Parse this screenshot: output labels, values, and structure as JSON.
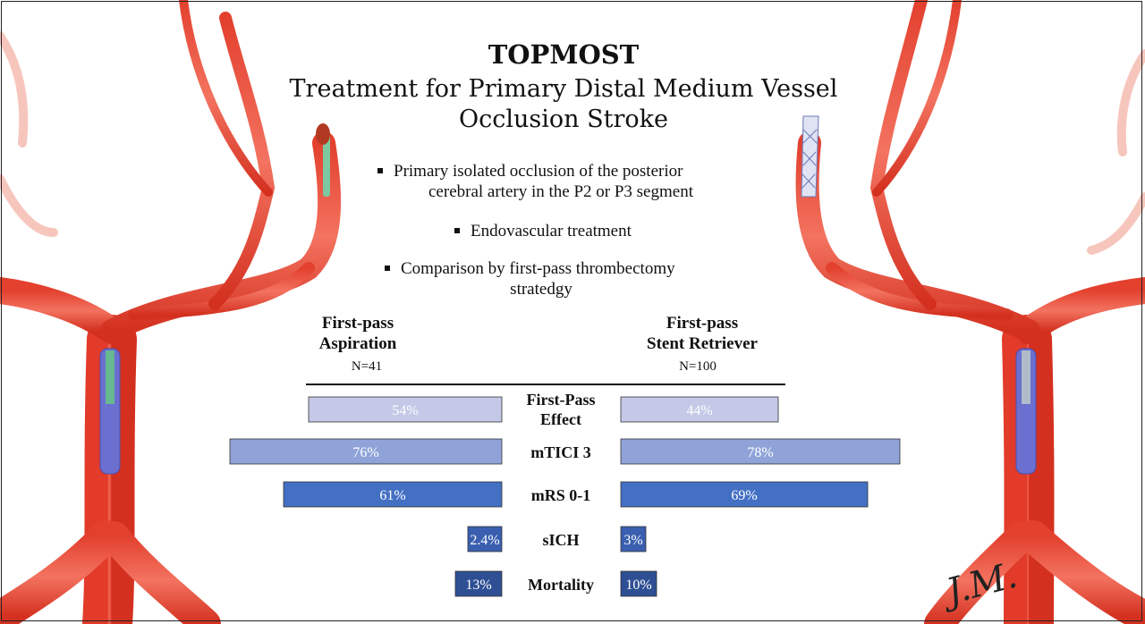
{
  "header": {
    "title": "TOPMOST",
    "subtitle": "Treatment for Primary Distal Medium Vessel Occlusion Stroke"
  },
  "bullets": [
    {
      "line1": "Primary isolated occlusion of the posterior",
      "line2": "cerebral artery in the P2 or P3 segment"
    },
    {
      "line1": "Endovascular treatment"
    },
    {
      "line1": "Comparison by first-pass thrombectomy",
      "line2": "stratedgy"
    }
  ],
  "groups": {
    "left": {
      "line1": "First-pass",
      "line2": "Aspiration",
      "n": "N=41"
    },
    "right": {
      "line1": "First-pass",
      "line2": "Stent Retriever",
      "n": "N=100"
    }
  },
  "signature": "J.M.",
  "chart_data": {
    "type": "bar",
    "orientation": "horizontal-butterfly",
    "categories": [
      "First-Pass Effect",
      "mTICI 3",
      "mRS 0-1",
      "sICH",
      "Mortality"
    ],
    "category_lines": [
      [
        "First-Pass",
        "Effect"
      ],
      [
        "mTICI 3"
      ],
      [
        "mRS 0-1"
      ],
      [
        "sICH"
      ],
      [
        "Mortality"
      ]
    ],
    "series": [
      {
        "name": "First-pass Aspiration",
        "values": [
          54,
          76,
          61,
          2.4,
          13
        ],
        "labels": [
          "54%",
          "76%",
          "61%",
          "2.4%",
          "13%"
        ]
      },
      {
        "name": "First-pass Stent Retriever",
        "values": [
          44,
          78,
          69,
          3,
          10
        ],
        "labels": [
          "44%",
          "78%",
          "69%",
          "3%",
          "10%"
        ]
      }
    ],
    "bar_colors": [
      "#c3c9e6",
      "#8fa3d8",
      "#4470c4",
      "#3a5fb0",
      "#2f4f94"
    ],
    "label_colors": [
      "#ffffff",
      "#ffffff",
      "#ffffff",
      "#ffffff",
      "#ffffff"
    ],
    "unit": "%",
    "xlim": [
      0,
      100
    ]
  }
}
